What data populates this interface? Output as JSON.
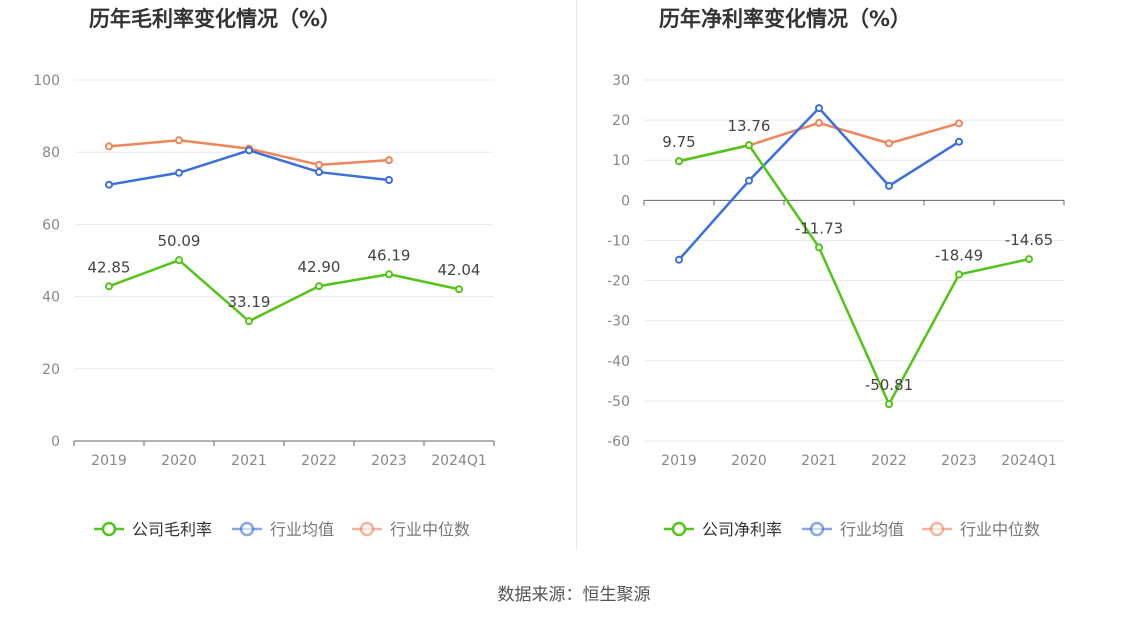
{
  "source": "数据来源：恒生聚源",
  "chart_data": [
    {
      "type": "line",
      "title": "历年毛利率变化情况（%）",
      "categories": [
        "2019",
        "2020",
        "2021",
        "2022",
        "2023",
        "2024Q1"
      ],
      "ylim": [
        0,
        100
      ],
      "yticks": [
        0,
        20,
        40,
        60,
        80,
        100
      ],
      "grid": true,
      "legend_position": "bottom",
      "series": [
        {
          "name": "公司毛利率",
          "color": "#52c41a",
          "values": [
            42.85,
            50.09,
            33.19,
            42.9,
            46.19,
            42.04
          ],
          "labels": [
            "42.85",
            "50.09",
            "33.19",
            "42.90",
            "46.19",
            "42.04"
          ]
        },
        {
          "name": "行业均值",
          "color": "#3a6fdc",
          "values": [
            71.0,
            74.3,
            80.5,
            74.5,
            72.3,
            null
          ]
        },
        {
          "name": "行业中位数",
          "color": "#f0845a",
          "values": [
            81.6,
            83.3,
            81.0,
            76.5,
            77.8,
            null
          ]
        }
      ]
    },
    {
      "type": "line",
      "title": "历年净利率变化情况（%）",
      "categories": [
        "2019",
        "2020",
        "2021",
        "2022",
        "2023",
        "2024Q1"
      ],
      "ylim": [
        -60,
        30
      ],
      "yticks": [
        -60,
        -50,
        -40,
        -30,
        -20,
        -10,
        0,
        10,
        20,
        30
      ],
      "grid": true,
      "legend_position": "bottom",
      "series": [
        {
          "name": "公司净利率",
          "color": "#52c41a",
          "values": [
            9.75,
            13.76,
            -11.73,
            -50.81,
            -18.49,
            -14.65
          ],
          "labels": [
            "9.75",
            "13.76",
            "-11.73",
            "-50.81",
            "-18.49",
            "-14.65"
          ]
        },
        {
          "name": "行业均值",
          "color": "#3a6fdc",
          "values": [
            -14.8,
            4.9,
            23.0,
            3.6,
            14.6,
            null
          ]
        },
        {
          "name": "行业中位数",
          "color": "#f0845a",
          "values": [
            9.8,
            13.7,
            19.3,
            14.2,
            19.2,
            null
          ]
        }
      ]
    }
  ]
}
